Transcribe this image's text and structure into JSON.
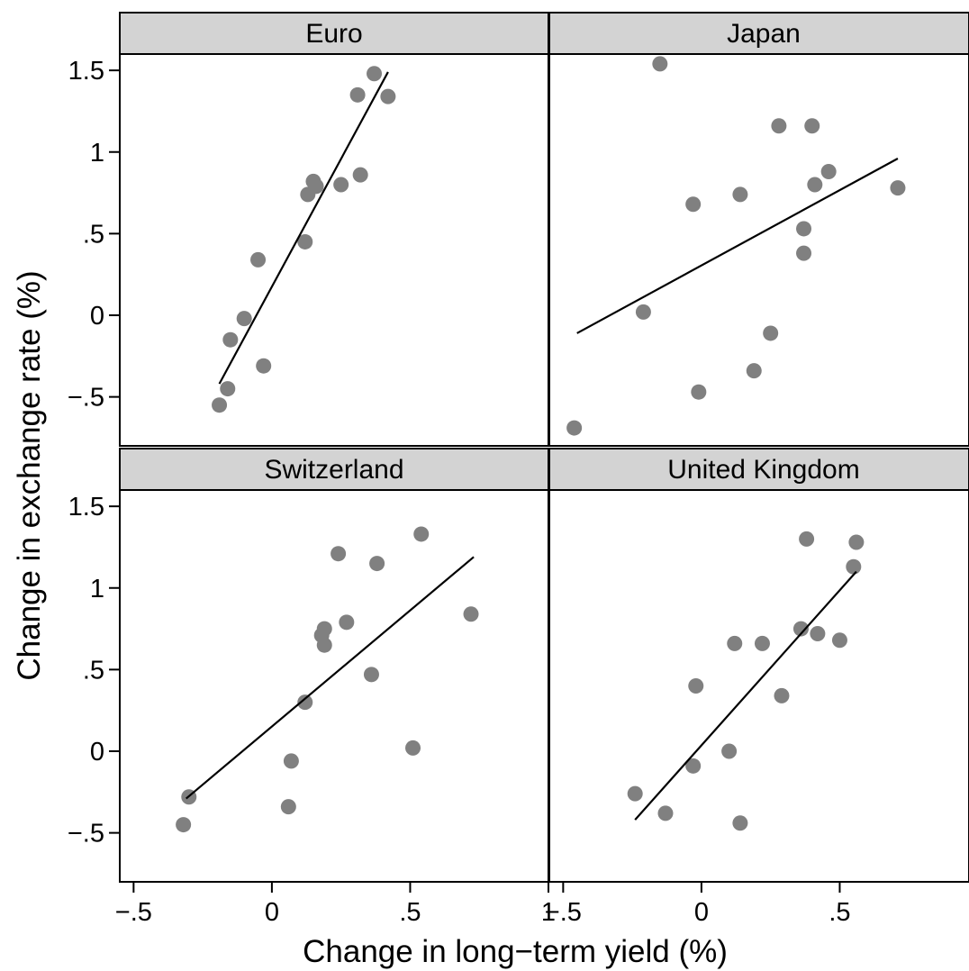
{
  "chart_data": {
    "type": "scatter",
    "xlabel": "Change in long−term yield (%)",
    "ylabel": "Change in exchange rate (%)",
    "xlim": [
      -0.55,
      1.0
    ],
    "ylim": [
      -0.8,
      1.6
    ],
    "x_ticks": [
      -0.5,
      0,
      0.5,
      1
    ],
    "x_tick_labels": [
      "−.5",
      "0",
      ".5",
      "1"
    ],
    "y_ticks": [
      -0.5,
      0,
      0.5,
      1,
      1.5
    ],
    "y_tick_labels": [
      "−.5",
      "0",
      ".5",
      "1",
      "1.5"
    ],
    "grid": false,
    "marker_color": "#808080",
    "fit_line_color": "#000000",
    "panels": [
      {
        "title": "Euro",
        "points": [
          [
            -0.19,
            -0.55
          ],
          [
            -0.16,
            -0.45
          ],
          [
            -0.15,
            -0.15
          ],
          [
            -0.1,
            -0.02
          ],
          [
            -0.05,
            0.34
          ],
          [
            -0.03,
            -0.31
          ],
          [
            0.12,
            0.45
          ],
          [
            0.13,
            0.74
          ],
          [
            0.15,
            0.82
          ],
          [
            0.16,
            0.79
          ],
          [
            0.25,
            0.8
          ],
          [
            0.31,
            1.35
          ],
          [
            0.32,
            0.86
          ],
          [
            0.37,
            1.48
          ],
          [
            0.42,
            1.34
          ]
        ],
        "fit_line": [
          [
            -0.19,
            -0.42
          ],
          [
            0.42,
            1.49
          ]
        ]
      },
      {
        "title": "Japan",
        "points": [
          [
            -0.46,
            -0.69
          ],
          [
            -0.15,
            1.54
          ],
          [
            -0.21,
            0.02
          ],
          [
            -0.03,
            0.68
          ],
          [
            -0.01,
            -0.47
          ],
          [
            0.14,
            0.74
          ],
          [
            0.19,
            -0.34
          ],
          [
            0.25,
            -0.11
          ],
          [
            0.28,
            1.16
          ],
          [
            0.37,
            0.53
          ],
          [
            0.37,
            0.38
          ],
          [
            0.4,
            1.16
          ],
          [
            0.41,
            0.8
          ],
          [
            0.46,
            0.88
          ],
          [
            0.71,
            0.78
          ]
        ],
        "fit_line": [
          [
            -0.45,
            -0.11
          ],
          [
            0.71,
            0.96
          ]
        ]
      },
      {
        "title": "Switzerland",
        "points": [
          [
            -0.32,
            -0.45
          ],
          [
            -0.3,
            -0.28
          ],
          [
            0.06,
            -0.34
          ],
          [
            0.07,
            -0.06
          ],
          [
            0.12,
            0.3
          ],
          [
            0.18,
            0.71
          ],
          [
            0.19,
            0.75
          ],
          [
            0.19,
            0.65
          ],
          [
            0.24,
            1.21
          ],
          [
            0.27,
            0.79
          ],
          [
            0.36,
            0.47
          ],
          [
            0.38,
            1.15
          ],
          [
            0.51,
            0.02
          ],
          [
            0.54,
            1.33
          ],
          [
            0.72,
            0.84
          ]
        ],
        "fit_line": [
          [
            -0.31,
            -0.29
          ],
          [
            0.73,
            1.19
          ]
        ]
      },
      {
        "title": "United Kingdom",
        "points": [
          [
            -0.24,
            -0.26
          ],
          [
            -0.13,
            -0.38
          ],
          [
            -0.03,
            -0.09
          ],
          [
            -0.02,
            0.4
          ],
          [
            0.1,
            0.0
          ],
          [
            0.12,
            0.66
          ],
          [
            0.14,
            -0.44
          ],
          [
            0.22,
            0.66
          ],
          [
            0.29,
            0.34
          ],
          [
            0.36,
            0.75
          ],
          [
            0.38,
            1.3
          ],
          [
            0.42,
            0.72
          ],
          [
            0.5,
            0.68
          ],
          [
            0.55,
            1.13
          ],
          [
            0.56,
            1.28
          ]
        ],
        "fit_line": [
          [
            -0.24,
            -0.42
          ],
          [
            0.56,
            1.1
          ]
        ]
      }
    ]
  }
}
